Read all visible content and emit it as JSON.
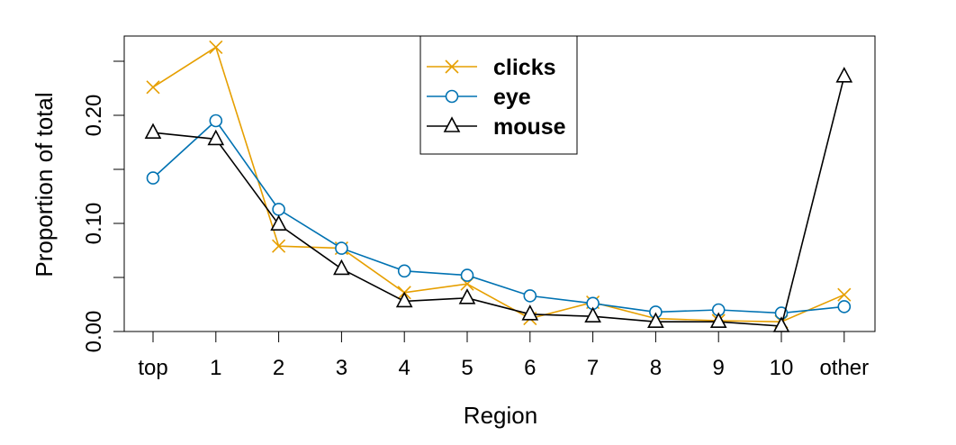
{
  "chart_data": {
    "type": "line",
    "title": "",
    "xlabel": "Region",
    "ylabel": "Proportion of total",
    "categories": [
      "top",
      "1",
      "2",
      "3",
      "4",
      "5",
      "6",
      "7",
      "8",
      "9",
      "10",
      "other"
    ],
    "yticks": [
      "0.00",
      "0.10",
      "0.20"
    ],
    "ylim": [
      0,
      0.27
    ],
    "legend_position": "top-center",
    "grid": false,
    "series": [
      {
        "name": "clicks",
        "color": "#E69F00",
        "marker": "x",
        "values": [
          0.226,
          0.263,
          0.079,
          0.077,
          0.036,
          0.044,
          0.012,
          0.027,
          0.012,
          0.01,
          0.009,
          0.034
        ]
      },
      {
        "name": "eye",
        "color": "#0072B2",
        "marker": "circle",
        "values": [
          0.142,
          0.195,
          0.113,
          0.077,
          0.056,
          0.052,
          0.033,
          0.026,
          0.018,
          0.02,
          0.017,
          0.023
        ]
      },
      {
        "name": "mouse",
        "color": "#000000",
        "marker": "triangle",
        "values": [
          0.184,
          0.178,
          0.099,
          0.058,
          0.028,
          0.031,
          0.016,
          0.014,
          0.009,
          0.009,
          0.005,
          0.236
        ]
      }
    ]
  }
}
